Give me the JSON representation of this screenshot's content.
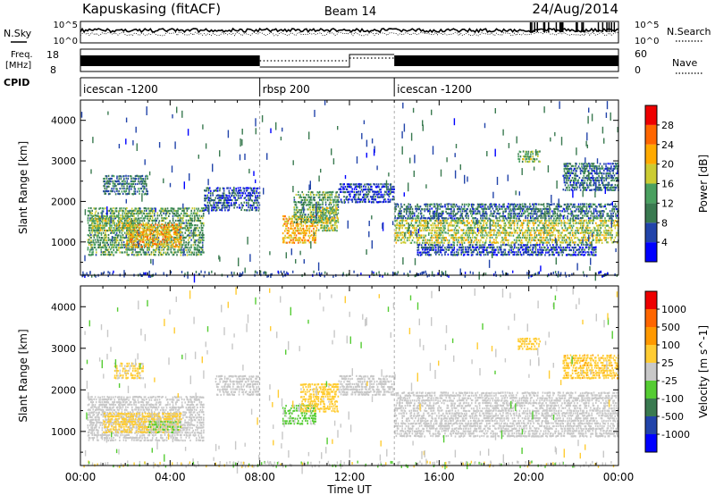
{
  "header": {
    "station": "Kapuskasing (fitACF)",
    "beam": "Beam 14",
    "date": "24/Aug/2014"
  },
  "panels": {
    "nsky_label": "N.Sky",
    "nsearch_label": "N.Search",
    "freq_label": "Freq.",
    "freq_unit": "[MHz]",
    "nave_label": "Nave",
    "cpid_label": "CPID",
    "noise_ticks_left": [
      "10^5",
      "10^0"
    ],
    "noise_ticks_right": [
      "10^5",
      "10^0"
    ],
    "freq_ticks": [
      "18",
      "8"
    ],
    "nave_ticks": [
      "60",
      "0"
    ]
  },
  "cpid_segments": [
    {
      "start_hour": 0,
      "end_hour": 8,
      "label": "icescan -1200"
    },
    {
      "start_hour": 8,
      "end_hour": 14,
      "label": "rbsp 200"
    },
    {
      "start_hour": 14,
      "end_hour": 24,
      "label": "icescan -1200"
    }
  ],
  "colors": {
    "power_scale": [
      "#0000ff",
      "#2244aa",
      "#3a7a50",
      "#4aa060",
      "#cccc33",
      "#ffaa00",
      "#ff6600",
      "#ee0000"
    ],
    "velocity_scale": [
      "#0000ff",
      "#2244aa",
      "#3a7a50",
      "#55cc33",
      "#c8c8c8",
      "#ffcc33",
      "#ff9900",
      "#ff6600",
      "#ee0000"
    ]
  },
  "chart_data": [
    {
      "type": "heatmap",
      "name": "power",
      "xlabel": "Time UT",
      "ylabel": "Slant Range [km]",
      "xlim": [
        0,
        24
      ],
      "ylim": [
        180,
        4500
      ],
      "x_ticks": [
        "00:00",
        "04:00",
        "08:00",
        "12:00",
        "16:00",
        "20:00",
        "00:00"
      ],
      "y_ticks": [
        1000,
        2000,
        3000,
        4000
      ],
      "colorbar": {
        "label": "Power [dB]",
        "ticks": [
          "4",
          "8",
          "12",
          "16",
          "20",
          "24",
          "28"
        ],
        "range": [
          0,
          30
        ]
      },
      "regions": [
        {
          "t0": 0.3,
          "t1": 5.5,
          "r0": 700,
          "r1": 1900,
          "v": 12
        },
        {
          "t0": 2.0,
          "t1": 4.5,
          "r0": 900,
          "r1": 1500,
          "v": 20
        },
        {
          "t0": 0.5,
          "t1": 2.5,
          "r0": 1300,
          "r1": 1700,
          "v": 16
        },
        {
          "t0": 1.0,
          "t1": 3.0,
          "r0": 2200,
          "r1": 2700,
          "v": 9
        },
        {
          "t0": 5.5,
          "t1": 8.0,
          "r0": 1800,
          "r1": 2400,
          "v": 6
        },
        {
          "t0": 9.0,
          "t1": 10.5,
          "r0": 1000,
          "r1": 1700,
          "v": 20
        },
        {
          "t0": 9.5,
          "t1": 11.5,
          "r0": 1500,
          "r1": 2300,
          "v": 12
        },
        {
          "t0": 10.5,
          "t1": 11.5,
          "r0": 1300,
          "r1": 1900,
          "v": 16
        },
        {
          "t0": 11.5,
          "t1": 14.0,
          "r0": 2000,
          "r1": 2500,
          "v": 5
        },
        {
          "t0": 14.0,
          "t1": 24.0,
          "r0": 1000,
          "r1": 1600,
          "v": 16
        },
        {
          "t0": 14.0,
          "t1": 24.0,
          "r0": 1600,
          "r1": 2000,
          "v": 8
        },
        {
          "t0": 15.0,
          "t1": 23.0,
          "r0": 700,
          "r1": 1000,
          "v": 6
        },
        {
          "t0": 21.5,
          "t1": 24.0,
          "r0": 2300,
          "r1": 3000,
          "v": 8
        },
        {
          "t0": 19.5,
          "t1": 20.5,
          "r0": 3000,
          "r1": 3300,
          "v": 14
        }
      ]
    },
    {
      "type": "heatmap",
      "name": "velocity",
      "xlabel": "Time UT",
      "ylabel": "Slant Range [km]",
      "xlim": [
        0,
        24
      ],
      "ylim": [
        180,
        4500
      ],
      "x_ticks": [
        "00:00",
        "04:00",
        "08:00",
        "12:00",
        "16:00",
        "20:00",
        "00:00"
      ],
      "y_ticks": [
        1000,
        2000,
        3000,
        4000
      ],
      "colorbar": {
        "label": "Velocity [m s^-1]",
        "ticks": [
          "1000",
          "500",
          "100",
          "25",
          "-25",
          "-100",
          "-500",
          "-1000"
        ],
        "range": [
          -1200,
          1200
        ]
      },
      "regions": [
        {
          "t0": 0.3,
          "t1": 5.5,
          "r0": 800,
          "r1": 1900,
          "v": 0
        },
        {
          "t0": 1.0,
          "t1": 4.5,
          "r0": 1000,
          "r1": 1500,
          "v": 250
        },
        {
          "t0": 3.0,
          "t1": 4.5,
          "r0": 1000,
          "r1": 1300,
          "v": -150
        },
        {
          "t0": 1.5,
          "t1": 2.8,
          "r0": 2300,
          "r1": 2700,
          "v": 200
        },
        {
          "t0": 9.0,
          "t1": 10.5,
          "r0": 1200,
          "r1": 1700,
          "v": -200
        },
        {
          "t0": 9.8,
          "t1": 11.5,
          "r0": 1500,
          "r1": 2200,
          "v": 250
        },
        {
          "t0": 6.0,
          "t1": 8.0,
          "r0": 1900,
          "r1": 2400,
          "v": 0
        },
        {
          "t0": 11.5,
          "t1": 14.0,
          "r0": 1900,
          "r1": 2400,
          "v": 0
        },
        {
          "t0": 14.0,
          "t1": 24.0,
          "r0": 900,
          "r1": 2000,
          "v": 0
        },
        {
          "t0": 21.5,
          "t1": 24.0,
          "r0": 2300,
          "r1": 2900,
          "v": 300
        },
        {
          "t0": 19.5,
          "t1": 20.5,
          "r0": 3000,
          "r1": 3300,
          "v": 250
        }
      ]
    }
  ]
}
